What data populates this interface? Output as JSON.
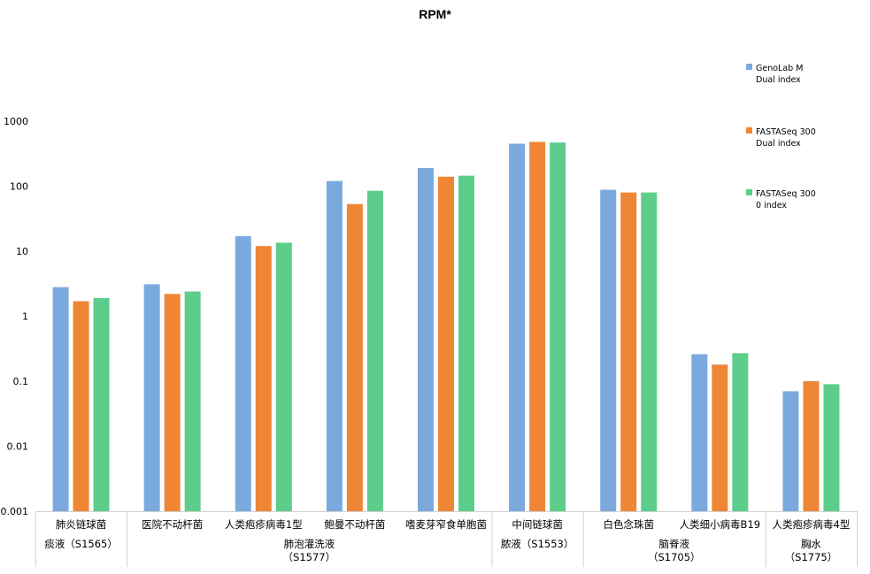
{
  "chart_data": {
    "type": "bar",
    "title": "RPM*",
    "yscale": "log",
    "ylim": [
      0.001,
      1000
    ],
    "yticks": [
      "0.001",
      "0.01",
      "0.1",
      "1",
      "10",
      "100",
      "1000"
    ],
    "grid": false,
    "legend_position": "right",
    "categories": [
      "肺炎链球菌",
      "医院不动杆菌",
      "人类疱疹病毒1型",
      "鲍曼不动杆菌",
      "嗜麦芽窄食单胞菌",
      "中间链球菌",
      "白色念珠菌",
      "人类细小病毒B19",
      "人类疱疹病毒4型"
    ],
    "groups": [
      {
        "line1": "痰液（S1565）",
        "line2": "",
        "span": [
          0,
          0
        ]
      },
      {
        "line1": "肺泡灌洗液",
        "line2": "（S1577）",
        "span": [
          1,
          4
        ]
      },
      {
        "line1": "脓液（S1553）",
        "line2": "",
        "span": [
          5,
          5
        ]
      },
      {
        "line1": "脑脊液",
        "line2": "（S1705）",
        "span": [
          6,
          7
        ]
      },
      {
        "line1": "胸水",
        "line2": "（S1775）",
        "span": [
          8,
          8
        ]
      }
    ],
    "series": [
      {
        "name": "GenoLab M\nDual index",
        "name_line1": "GenoLab M",
        "name_line2": "Dual index",
        "color": "#7aaadd",
        "values": [
          2.8,
          3.1,
          17,
          120,
          190,
          450,
          88,
          0.26,
          0.07
        ]
      },
      {
        "name": "FASTASeq 300\nDual index",
        "name_line1": "FASTASeq 300",
        "name_line2": "Dual index",
        "color": "#ef8636",
        "values": [
          1.7,
          2.2,
          12,
          53,
          140,
          480,
          80,
          0.18,
          0.1
        ]
      },
      {
        "name": "FASTASeq 300\n0 index",
        "name_line1": "FASTASeq 300",
        "name_line2": "0 index",
        "color": "#5dcd8b",
        "values": [
          1.9,
          2.4,
          13.5,
          85,
          145,
          470,
          80,
          0.27,
          0.09
        ]
      }
    ]
  }
}
